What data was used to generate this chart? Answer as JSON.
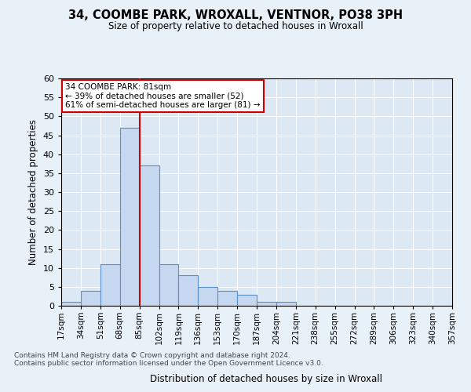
{
  "title": "34, COOMBE PARK, WROXALL, VENTNOR, PO38 3PH",
  "subtitle": "Size of property relative to detached houses in Wroxall",
  "xlabel": "Distribution of detached houses by size in Wroxall",
  "ylabel": "Number of detached properties",
  "footnote1": "Contains HM Land Registry data © Crown copyright and database right 2024.",
  "footnote2": "Contains public sector information licensed under the Open Government Licence v3.0.",
  "bin_labels": [
    "17sqm",
    "34sqm",
    "51sqm",
    "68sqm",
    "85sqm",
    "102sqm",
    "119sqm",
    "136sqm",
    "153sqm",
    "170sqm",
    "187sqm",
    "204sqm",
    "221sqm",
    "238sqm",
    "255sqm",
    "272sqm",
    "289sqm",
    "306sqm",
    "323sqm",
    "340sqm",
    "357sqm"
  ],
  "bar_values": [
    1,
    4,
    11,
    47,
    37,
    11,
    8,
    5,
    4,
    3,
    1,
    1,
    0,
    0,
    0,
    0,
    0,
    0,
    0,
    0
  ],
  "bar_color": "#c5d8f0",
  "bar_edge_color": "#5b8fc9",
  "ylim": [
    0,
    60
  ],
  "yticks": [
    0,
    5,
    10,
    15,
    20,
    25,
    30,
    35,
    40,
    45,
    50,
    55,
    60
  ],
  "property_label": "34 COOMBE PARK: 81sqm",
  "annotation_line1": "← 39% of detached houses are smaller (52)",
  "annotation_line2": "61% of semi-detached houses are larger (81) →",
  "annotation_box_color": "#ffffff",
  "annotation_box_edge": "#cc0000",
  "red_line_color": "#cc0000",
  "background_color": "#dce9f5",
  "fig_background_color": "#e8f0f8",
  "grid_color": "#ffffff"
}
